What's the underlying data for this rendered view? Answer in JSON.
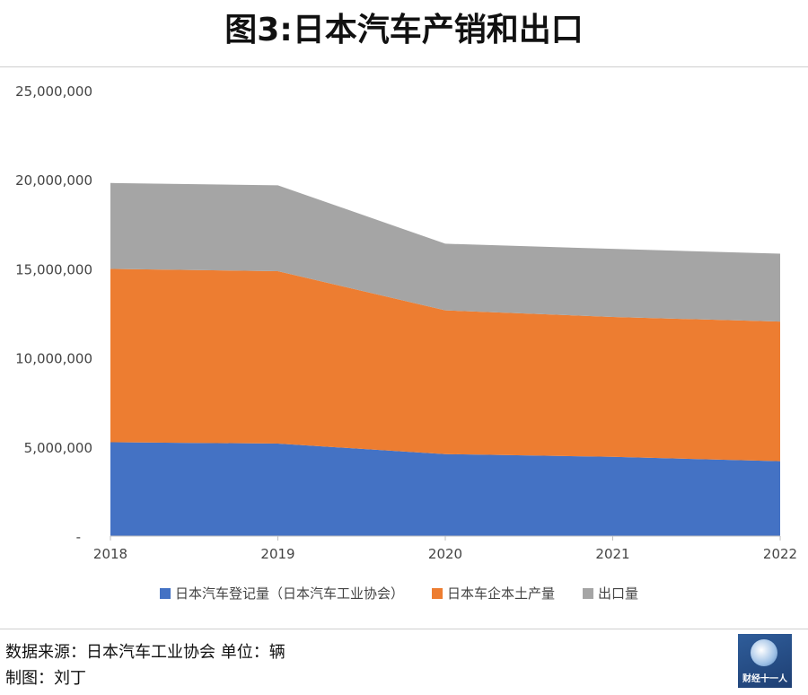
{
  "title": "图3:日本汽车产销和出口",
  "footer": {
    "source": "数据来源：日本汽车工业协会  单位：辆",
    "author": "制图：刘丁"
  },
  "logo": {
    "text": "财经十一人"
  },
  "chart_data": {
    "type": "area",
    "stacked": true,
    "x": [
      "2018",
      "2019",
      "2020",
      "2021",
      "2022"
    ],
    "ylim": [
      0,
      25000000
    ],
    "yticks": [
      {
        "value": 0,
        "label": "-"
      },
      {
        "value": 5000000,
        "label": "5,000,000"
      },
      {
        "value": 10000000,
        "label": "10,000,000"
      },
      {
        "value": 15000000,
        "label": "15,000,000"
      },
      {
        "value": 20000000,
        "label": "20,000,000"
      },
      {
        "value": 25000000,
        "label": "25,000,000"
      }
    ],
    "grid": false,
    "legend": "bottom",
    "series": [
      {
        "name": "日本汽车登记量（日本汽车工业协会）",
        "color": "#4472C4",
        "values": [
          5270000,
          5190000,
          4600000,
          4450000,
          4200000
        ]
      },
      {
        "name": "日本车企本土产量",
        "color": "#ED7D31",
        "values": [
          9730000,
          9680000,
          8070000,
          7850000,
          7840000
        ]
      },
      {
        "name": "出口量",
        "color": "#A5A5A5",
        "values": [
          4820000,
          4820000,
          3740000,
          3820000,
          3810000
        ]
      }
    ]
  }
}
